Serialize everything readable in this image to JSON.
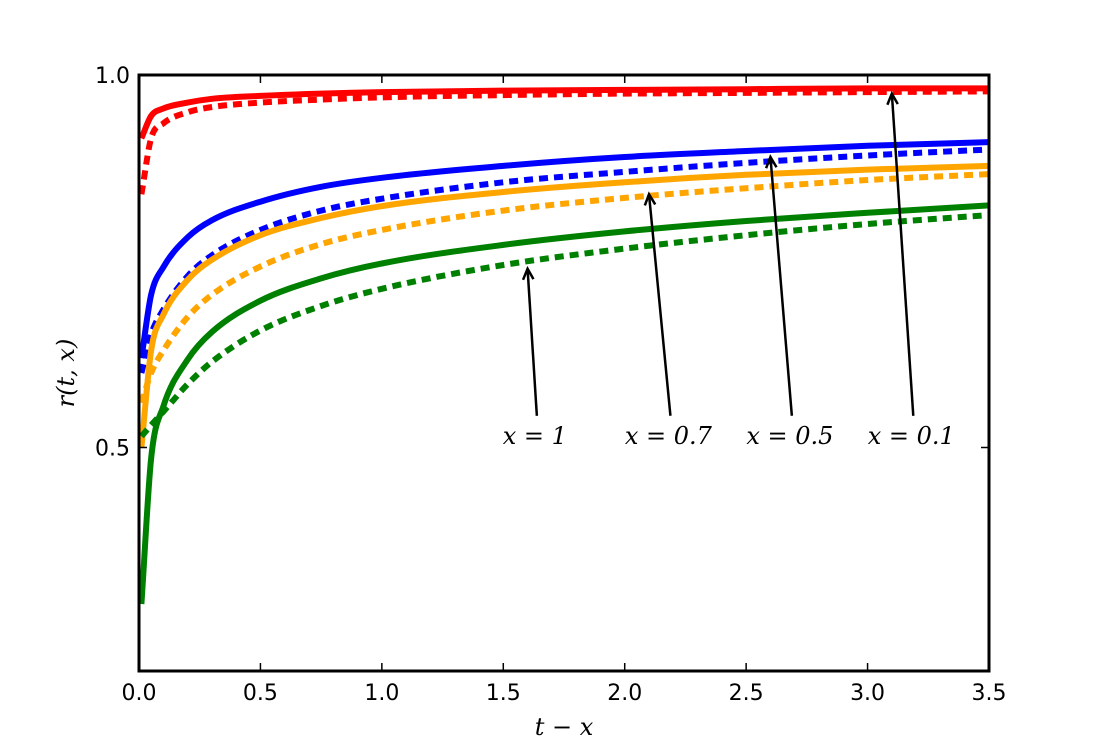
{
  "chart_data": {
    "type": "line",
    "title": "",
    "xlabel": "t − x",
    "ylabel": "r(t, x)",
    "xlim": [
      0,
      3.5
    ],
    "ylim": [
      0.2,
      1.0
    ],
    "xticks": [
      0.0,
      0.5,
      1.0,
      1.5,
      2.0,
      2.5,
      3.0,
      3.5
    ],
    "xtick_labels": [
      "0.0",
      "0.5",
      "1.0",
      "1.5",
      "2.0",
      "2.5",
      "3.0",
      "3.5"
    ],
    "yticks": [
      0.5,
      1.0
    ],
    "ytick_labels": [
      "0.5",
      "1.0"
    ],
    "grid": false,
    "legend": "none",
    "x": [
      0.01,
      0.05,
      0.1,
      0.2,
      0.3,
      0.5,
      0.75,
      1.0,
      1.5,
      2.0,
      2.5,
      3.0,
      3.5
    ],
    "series": [
      {
        "color": "#ff0000",
        "style": "solid",
        "values": [
          0.915,
          0.945,
          0.955,
          0.963,
          0.968,
          0.972,
          0.975,
          0.977,
          0.979,
          0.98,
          0.981,
          0.982,
          0.982
        ]
      },
      {
        "color": "#ff0000",
        "style": "dashed",
        "values": [
          0.84,
          0.915,
          0.935,
          0.95,
          0.957,
          0.963,
          0.967,
          0.97,
          0.973,
          0.975,
          0.976,
          0.977,
          0.978
        ]
      },
      {
        "color": "#0000ff",
        "style": "solid",
        "values": [
          0.62,
          0.705,
          0.742,
          0.782,
          0.805,
          0.83,
          0.85,
          0.862,
          0.878,
          0.89,
          0.898,
          0.905,
          0.91
        ]
      },
      {
        "color": "#0000ff",
        "style": "dashed",
        "values": [
          0.6,
          0.652,
          0.685,
          0.73,
          0.758,
          0.792,
          0.818,
          0.834,
          0.856,
          0.87,
          0.882,
          0.892,
          0.9
        ]
      },
      {
        "color": "#ffa500",
        "style": "solid",
        "values": [
          0.5,
          0.63,
          0.678,
          0.725,
          0.752,
          0.785,
          0.808,
          0.824,
          0.843,
          0.856,
          0.866,
          0.873,
          0.878
        ]
      },
      {
        "color": "#ffa500",
        "style": "dashed",
        "values": [
          0.56,
          0.6,
          0.63,
          0.675,
          0.705,
          0.743,
          0.773,
          0.792,
          0.818,
          0.835,
          0.848,
          0.859,
          0.867
        ]
      },
      {
        "color": "#008000",
        "style": "solid",
        "values": [
          0.29,
          0.485,
          0.555,
          0.618,
          0.655,
          0.697,
          0.727,
          0.747,
          0.772,
          0.79,
          0.804,
          0.815,
          0.825
        ]
      },
      {
        "color": "#008000",
        "style": "dashed",
        "values": [
          0.515,
          0.53,
          0.548,
          0.585,
          0.615,
          0.657,
          0.69,
          0.713,
          0.745,
          0.767,
          0.785,
          0.8,
          0.812
        ]
      }
    ],
    "annotations": [
      {
        "text": "x = 1",
        "point": [
          1.6,
          0.74
        ],
        "text_at": [
          1.63,
          0.505
        ]
      },
      {
        "text": "x = 0.7",
        "point": [
          2.1,
          0.84
        ],
        "text_at": [
          2.18,
          0.505
        ]
      },
      {
        "text": "x = 0.5",
        "point": [
          2.6,
          0.89
        ],
        "text_at": [
          2.68,
          0.505
        ]
      },
      {
        "text": "x = 0.1",
        "point": [
          3.1,
          0.975
        ],
        "text_at": [
          3.18,
          0.505
        ]
      }
    ]
  }
}
